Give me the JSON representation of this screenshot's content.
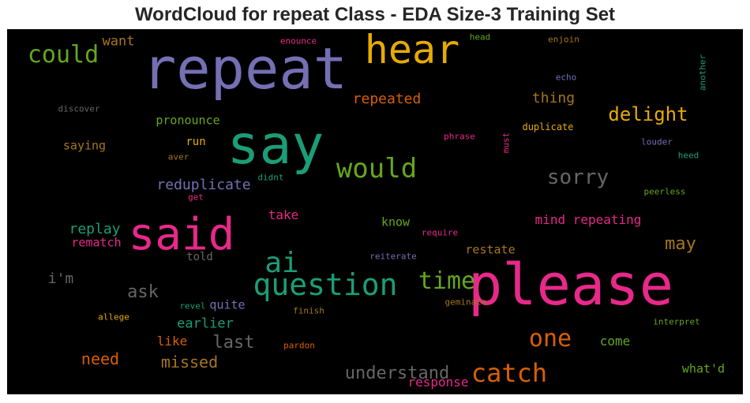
{
  "chart_data": {
    "type": "wordcloud",
    "title": "WordCloud for repeat Class - EDA Size-3 Training Set",
    "background": "#000000",
    "colormap": [
      "#1b9e77",
      "#d95f02",
      "#7570b3",
      "#e7298a",
      "#66a61e",
      "#e6ab02",
      "#a6761d",
      "#666666"
    ],
    "words": [
      {
        "text": "please",
        "color": "#e7298a",
        "weight": 72,
        "vertical": false
      },
      {
        "text": "repeat",
        "color": "#7570b3",
        "weight": 72,
        "vertical": false
      },
      {
        "text": "say",
        "color": "#1b9e77",
        "weight": 68,
        "vertical": false
      },
      {
        "text": "said",
        "color": "#e7298a",
        "weight": 56,
        "vertical": false
      },
      {
        "text": "hear",
        "color": "#e6ab02",
        "weight": 50,
        "vertical": false
      },
      {
        "text": "question",
        "color": "#1b9e77",
        "weight": 38,
        "vertical": false
      },
      {
        "text": "ai",
        "color": "#1b9e77",
        "weight": 36,
        "vertical": false
      },
      {
        "text": "would",
        "color": "#66a61e",
        "weight": 34,
        "vertical": false
      },
      {
        "text": "catch",
        "color": "#d95f02",
        "weight": 32,
        "vertical": false
      },
      {
        "text": "could",
        "color": "#66a61e",
        "weight": 30,
        "vertical": false
      },
      {
        "text": "time",
        "color": "#66a61e",
        "weight": 30,
        "vertical": false
      },
      {
        "text": "one",
        "color": "#d95f02",
        "weight": 30,
        "vertical": false
      },
      {
        "text": "sorry",
        "color": "#666666",
        "weight": 26,
        "vertical": false
      },
      {
        "text": "delight",
        "color": "#e6ab02",
        "weight": 24,
        "vertical": false
      },
      {
        "text": "understand",
        "color": "#666666",
        "weight": 22,
        "vertical": false
      },
      {
        "text": "last",
        "color": "#666666",
        "weight": 22,
        "vertical": false
      },
      {
        "text": "ask",
        "color": "#666666",
        "weight": 22,
        "vertical": false
      },
      {
        "text": "may",
        "color": "#a6761d",
        "weight": 22,
        "vertical": false
      },
      {
        "text": "missed",
        "color": "#a6761d",
        "weight": 20,
        "vertical": false
      },
      {
        "text": "need",
        "color": "#d95f02",
        "weight": 20,
        "vertical": false
      },
      {
        "text": "thing",
        "color": "#a6761d",
        "weight": 18,
        "vertical": false
      },
      {
        "text": "repeated",
        "color": "#d95f02",
        "weight": 18,
        "vertical": false
      },
      {
        "text": "reduplicate",
        "color": "#7570b3",
        "weight": 18,
        "vertical": false
      },
      {
        "text": "replay",
        "color": "#1b9e77",
        "weight": 18,
        "vertical": false
      },
      {
        "text": "i'm",
        "color": "#666666",
        "weight": 18,
        "vertical": false
      },
      {
        "text": "earlier",
        "color": "#1b9e77",
        "weight": 17,
        "vertical": false
      },
      {
        "text": "want",
        "color": "#a6761d",
        "weight": 17,
        "vertical": false
      },
      {
        "text": "take",
        "color": "#e7298a",
        "weight": 16,
        "vertical": false
      },
      {
        "text": "mind repeating",
        "color": "#e7298a",
        "weight": 16,
        "vertical": false
      },
      {
        "text": "like",
        "color": "#d95f02",
        "weight": 16,
        "vertical": false
      },
      {
        "text": "response",
        "color": "#e7298a",
        "weight": 16,
        "vertical": false
      },
      {
        "text": "come",
        "color": "#66a61e",
        "weight": 16,
        "vertical": false
      },
      {
        "text": "restate",
        "color": "#a6761d",
        "weight": 15,
        "vertical": false
      },
      {
        "text": "rematch",
        "color": "#e7298a",
        "weight": 15,
        "vertical": false
      },
      {
        "text": "know",
        "color": "#66a61e",
        "weight": 15,
        "vertical": false
      },
      {
        "text": "quite",
        "color": "#7570b3",
        "weight": 15,
        "vertical": false
      },
      {
        "text": "pronounce",
        "color": "#66a61e",
        "weight": 15,
        "vertical": false
      },
      {
        "text": "what'd",
        "color": "#66a61e",
        "weight": 15,
        "vertical": false
      },
      {
        "text": "saying",
        "color": "#a6761d",
        "weight": 15,
        "vertical": false
      },
      {
        "text": "told",
        "color": "#666666",
        "weight": 14,
        "vertical": false
      },
      {
        "text": "run",
        "color": "#e6ab02",
        "weight": 14,
        "vertical": false
      },
      {
        "text": "duplicate",
        "color": "#e6ab02",
        "weight": 12,
        "vertical": false
      },
      {
        "text": "louder",
        "color": "#7570b3",
        "weight": 11,
        "vertical": false
      },
      {
        "text": "phrase",
        "color": "#e7298a",
        "weight": 11,
        "vertical": false
      },
      {
        "text": "echo",
        "color": "#7570b3",
        "weight": 11,
        "vertical": false
      },
      {
        "text": "peerless",
        "color": "#66a61e",
        "weight": 11,
        "vertical": false
      },
      {
        "text": "heed",
        "color": "#1b9e77",
        "weight": 11,
        "vertical": false
      },
      {
        "text": "head",
        "color": "#66a61e",
        "weight": 11,
        "vertical": false
      },
      {
        "text": "enjoin",
        "color": "#a6761d",
        "weight": 11,
        "vertical": false
      },
      {
        "text": "enounce",
        "color": "#e7298a",
        "weight": 11,
        "vertical": false
      },
      {
        "text": "discover",
        "color": "#666666",
        "weight": 11,
        "vertical": false
      },
      {
        "text": "aver",
        "color": "#a6761d",
        "weight": 11,
        "vertical": false
      },
      {
        "text": "didnt",
        "color": "#1b9e77",
        "weight": 11,
        "vertical": false
      },
      {
        "text": "get",
        "color": "#e7298a",
        "weight": 11,
        "vertical": false
      },
      {
        "text": "require",
        "color": "#e7298a",
        "weight": 11,
        "vertical": false
      },
      {
        "text": "reiterate",
        "color": "#7570b3",
        "weight": 11,
        "vertical": false
      },
      {
        "text": "revel",
        "color": "#1b9e77",
        "weight": 11,
        "vertical": false
      },
      {
        "text": "allege",
        "color": "#e6ab02",
        "weight": 11,
        "vertical": false
      },
      {
        "text": "finish",
        "color": "#a6761d",
        "weight": 11,
        "vertical": false
      },
      {
        "text": "geminate",
        "color": "#a6761d",
        "weight": 11,
        "vertical": false
      },
      {
        "text": "pardon",
        "color": "#d95f02",
        "weight": 11,
        "vertical": false
      },
      {
        "text": "interpret",
        "color": "#66a61e",
        "weight": 11,
        "vertical": false
      },
      {
        "text": "another",
        "color": "#1b9e77",
        "weight": 11,
        "vertical": true
      },
      {
        "text": "must",
        "color": "#e7298a",
        "weight": 11,
        "vertical": true
      }
    ]
  }
}
